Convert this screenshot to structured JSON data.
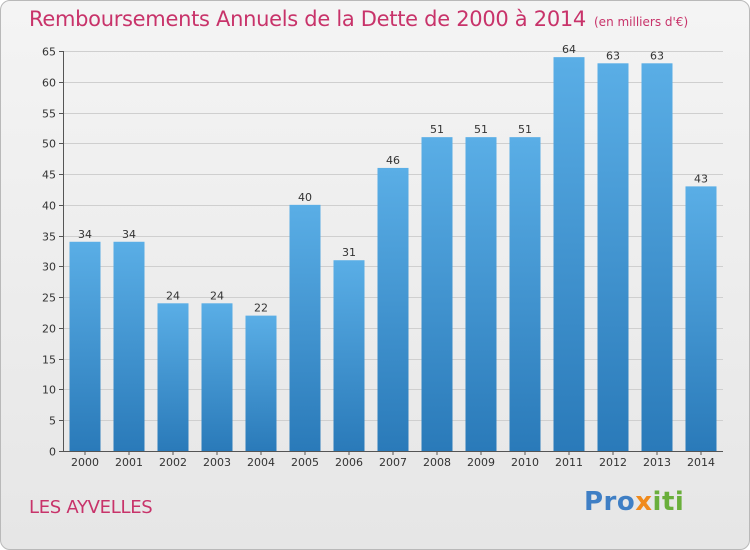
{
  "header": {
    "title": "Remboursements Annuels de la Dette de 2000 à 2014",
    "unit": "(en milliers d'€)"
  },
  "footer": {
    "commune": "LES AYVELLES",
    "logo_part1": "Pro",
    "logo_part2": "x",
    "logo_part3": "iti"
  },
  "colors": {
    "bar_top": "#5aaee6",
    "bar_bottom": "#2a7ab9",
    "title": "#c8336a"
  },
  "chart_data": {
    "type": "bar",
    "title": "Remboursements Annuels de la Dette de 2000 à 2014",
    "xlabel": "",
    "ylabel": "",
    "categories": [
      "2000",
      "2001",
      "2002",
      "2003",
      "2004",
      "2005",
      "2006",
      "2007",
      "2008",
      "2009",
      "2010",
      "2011",
      "2012",
      "2013",
      "2014"
    ],
    "values": [
      34,
      34,
      24,
      24,
      22,
      40,
      31,
      46,
      51,
      51,
      51,
      64,
      63,
      63,
      43
    ],
    "ylim": [
      0,
      65
    ],
    "yticks": [
      0,
      5,
      10,
      15,
      20,
      25,
      30,
      35,
      40,
      45,
      50,
      55,
      60,
      65
    ],
    "grid": true
  }
}
